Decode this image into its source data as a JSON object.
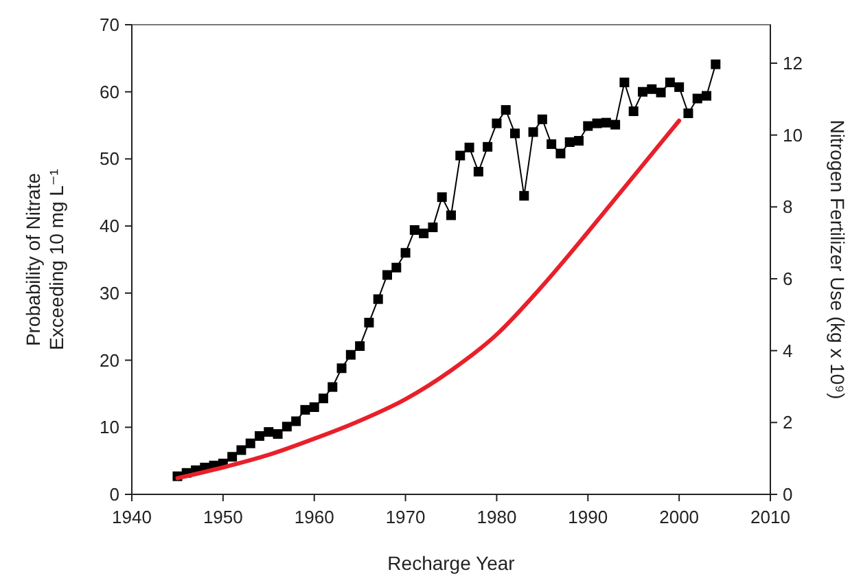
{
  "chart_data": {
    "type": "line",
    "xlabel": "Recharge Year",
    "ylabel": "Probability of Nitrate\nExceeding 10 mg L⁻¹",
    "y2label": "Nitrogen Fertilizer Use (kg x 10⁹)",
    "xlim": [
      1940,
      2010
    ],
    "xticks": [
      1940,
      1950,
      1960,
      1970,
      1980,
      1990,
      2000,
      2010
    ],
    "ylim": [
      0,
      70
    ],
    "yticks": [
      0,
      10,
      20,
      30,
      40,
      50,
      60,
      70
    ],
    "y2lim": [
      0,
      13.07
    ],
    "y2ticks": [
      0,
      2,
      4,
      6,
      8,
      10,
      12
    ],
    "grid": false,
    "series": [
      {
        "color": "#000000",
        "marker": "square",
        "line_style": "solid",
        "axis": "y",
        "x": [
          1945,
          1946,
          1947,
          1948,
          1949,
          1950,
          1951,
          1952,
          1953,
          1954,
          1955,
          1956,
          1957,
          1958,
          1959,
          1960,
          1961,
          1962,
          1963,
          1964,
          1965,
          1966,
          1967,
          1968,
          1969,
          1970,
          1971,
          1972,
          1973,
          1974,
          1975,
          1976,
          1977,
          1978,
          1979,
          1980,
          1981,
          1982,
          1983,
          1984,
          1985,
          1986,
          1987,
          1988,
          1989,
          1990,
          1991,
          1992,
          1993,
          1994,
          1995,
          1996,
          1997,
          1998,
          1999,
          2000,
          2001,
          2002,
          2003,
          2004
        ],
        "values": [
          2.7,
          3.2,
          3.6,
          4.0,
          4.3,
          4.6,
          5.6,
          6.6,
          7.6,
          8.7,
          9.3,
          9.0,
          10.1,
          10.9,
          12.6,
          13.0,
          14.3,
          16.0,
          18.8,
          20.8,
          22.1,
          25.6,
          29.1,
          32.7,
          33.8,
          36.0,
          39.4,
          38.9,
          39.8,
          44.3,
          41.6,
          50.5,
          51.7,
          48.1,
          51.8,
          55.3,
          57.3,
          53.8,
          44.5,
          54.0,
          55.9,
          52.2,
          50.8,
          52.5,
          52.7,
          54.9,
          55.3,
          55.4,
          55.1,
          61.4,
          57.1,
          60.0,
          60.4,
          59.9,
          61.4,
          60.7,
          56.8,
          59.0,
          59.4,
          64.1
        ]
      },
      {
        "color": "#e8202a",
        "marker": "none",
        "line_style": "solid",
        "axis": "y2",
        "x": [
          1945,
          1950,
          1955,
          1960,
          1965,
          1970,
          1975,
          1980,
          1985,
          1990,
          1995,
          2000
        ],
        "values": [
          0.45,
          0.75,
          1.1,
          1.55,
          2.05,
          2.65,
          3.45,
          4.45,
          5.8,
          7.3,
          8.85,
          10.4
        ]
      }
    ]
  }
}
